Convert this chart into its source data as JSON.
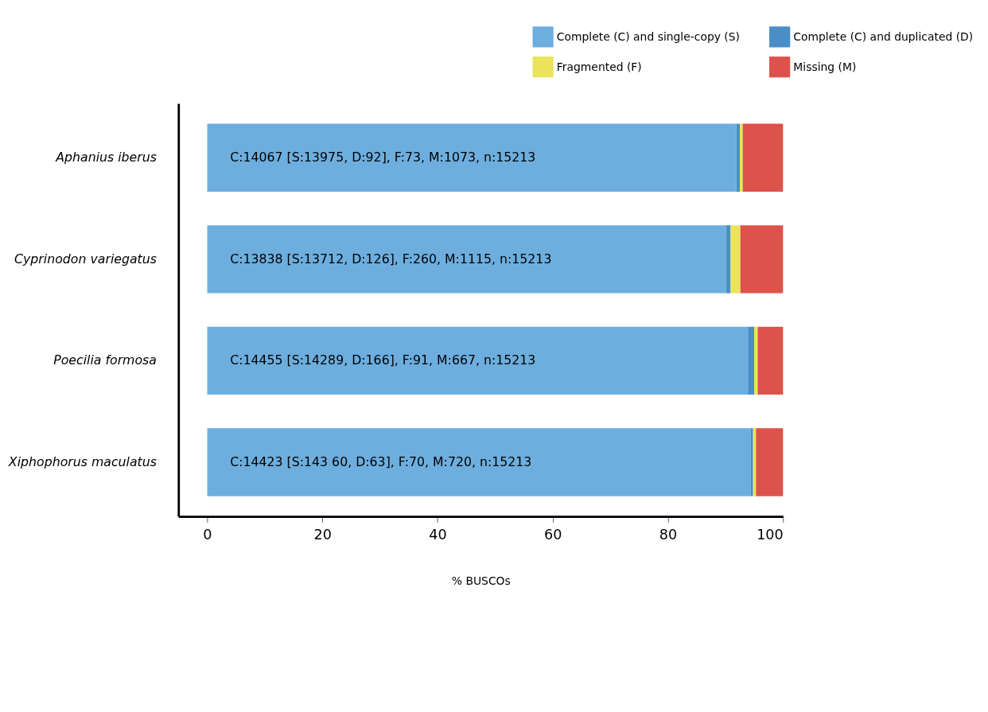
{
  "chart_data": {
    "type": "bar",
    "orientation": "horizontal",
    "stacked": true,
    "categories": [
      "Aphanius  iberus",
      "Cyprinodon  variegatus",
      "Poecilia  formosa",
      "Xiphophorus  maculatus"
    ],
    "series": [
      {
        "name": "Complete  (C)  and single-copy  (S)",
        "color": "#6daedf",
        "values": [
          91.9,
          90.1,
          93.9,
          94.4
        ]
      },
      {
        "name": "Complete  (C)  and  duplicated (D)",
        "color": "#4a8ec6",
        "values": [
          0.6,
          0.8,
          1.1,
          0.4
        ]
      },
      {
        "name": "Fragmented  (F)",
        "color": "#ebe35b",
        "values": [
          0.5,
          1.7,
          0.6,
          0.5
        ]
      },
      {
        "name": "Missing  (M)",
        "color": "#de524c",
        "values": [
          7.0,
          7.4,
          4.4,
          4.7
        ]
      }
    ],
    "annotations": [
      "C:14067    [S:13975,    D:92],  F:73,    M:1073,    n:15213",
      "C:13838    [S:13712,    D:126],   F:260,   M:1115,    n:15213",
      "C:14455    [S:14289,    D:166],   F:91,   M:667,   n:15213",
      "C:14423    [S:143 60,   D:63],   F:70,    M:720,    n:15213"
    ],
    "xlabel": "% BUSCOs",
    "xlim": [
      -5,
      100
    ],
    "xticks": [
      0,
      20,
      40,
      60,
      80,
      100
    ],
    "legend": "top right",
    "grid": false
  }
}
